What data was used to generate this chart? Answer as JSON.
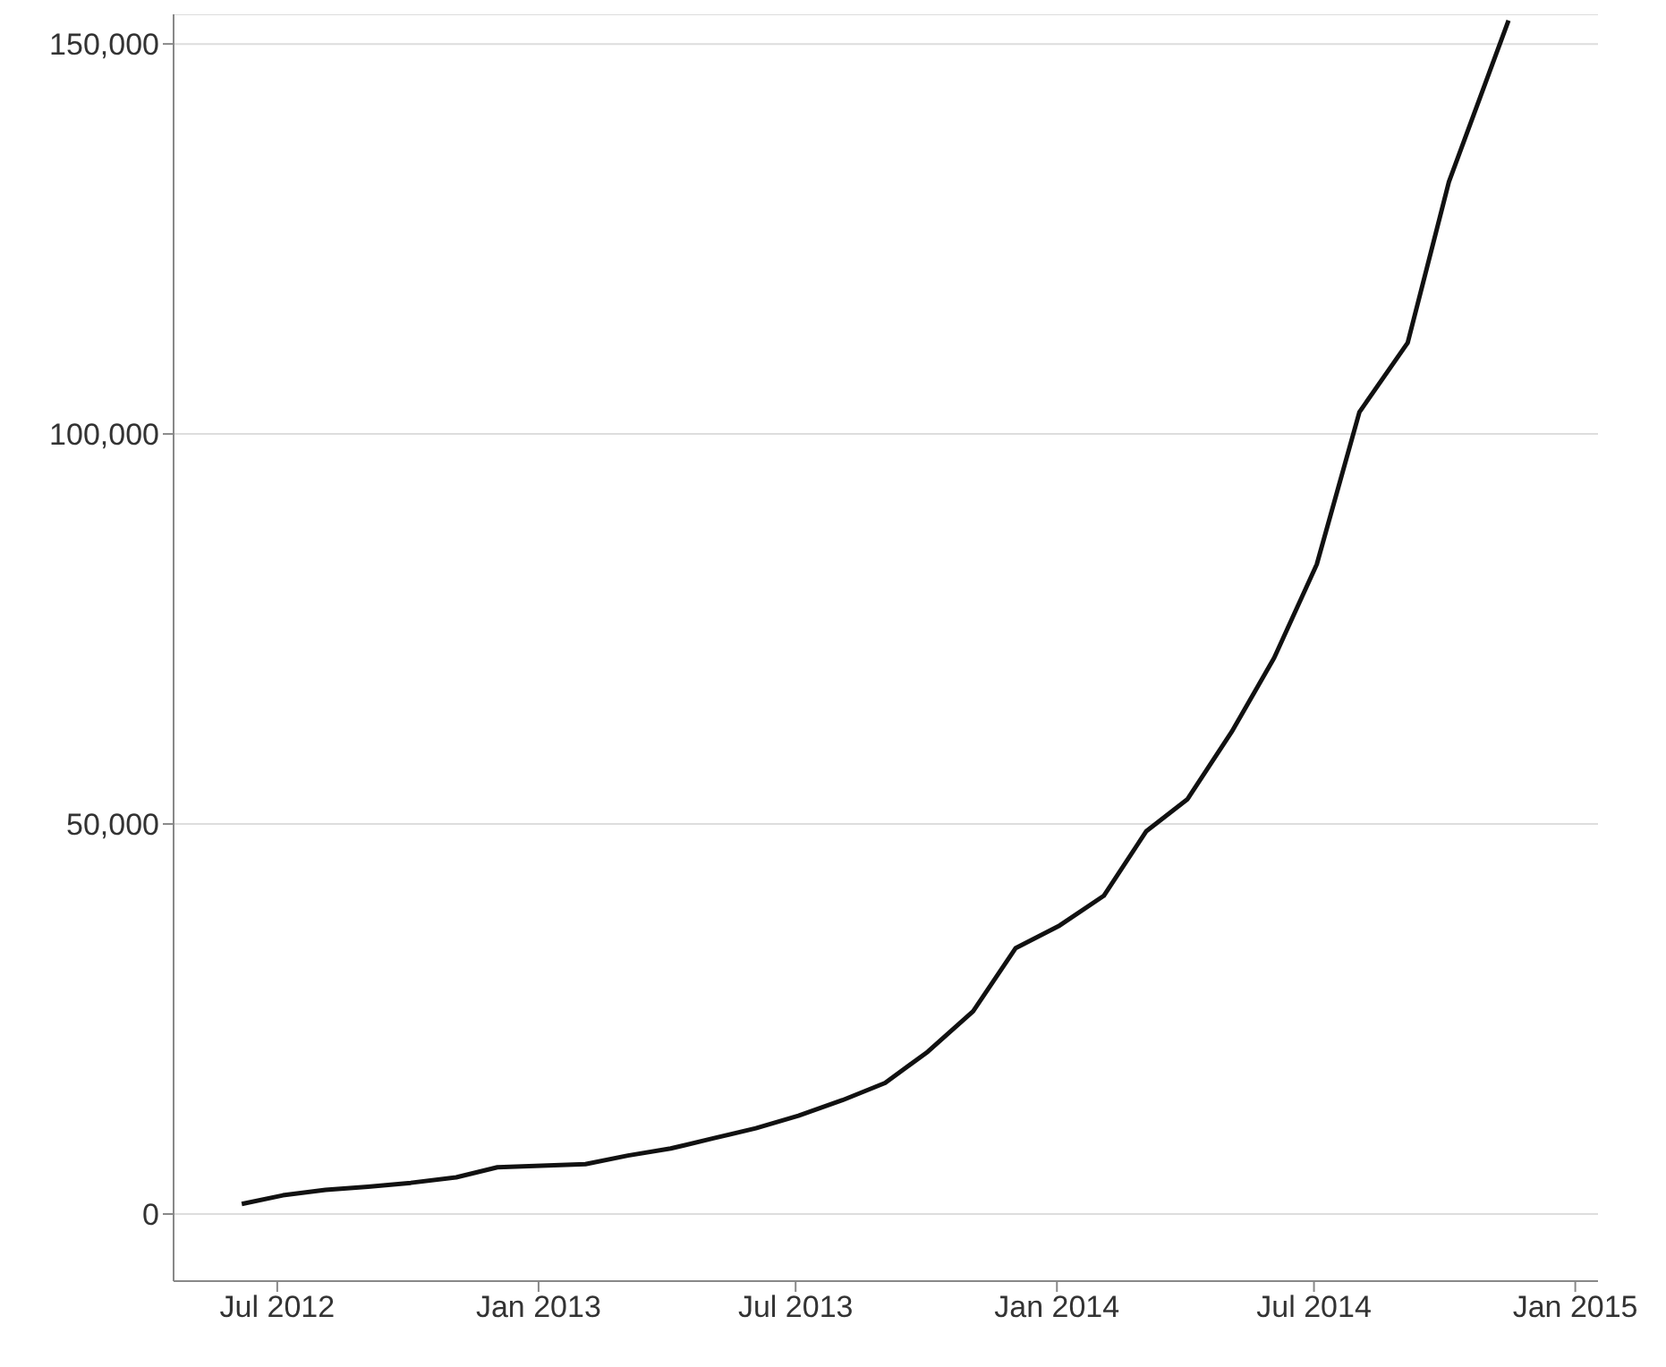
{
  "chart_data": {
    "type": "line",
    "x": [
      "2012-06-06",
      "2012-07-05",
      "2012-08-04",
      "2012-09-03",
      "2012-10-03",
      "2012-11-04",
      "2012-12-03",
      "2013-01-03",
      "2013-02-03",
      "2013-03-05",
      "2013-04-04",
      "2013-05-04",
      "2013-06-03",
      "2013-07-03",
      "2013-08-03",
      "2013-09-02",
      "2013-10-02",
      "2013-11-03",
      "2013-12-03",
      "2014-01-03",
      "2014-02-03",
      "2014-03-05",
      "2014-04-03",
      "2014-05-04",
      "2014-06-03",
      "2014-07-03",
      "2014-08-02",
      "2014-09-05",
      "2014-10-04",
      "2014-11-15"
    ],
    "series": [
      {
        "color": "#111111",
        "values": [
          1300,
          2400,
          3100,
          3500,
          4000,
          4700,
          6000,
          6200,
          6400,
          7500,
          8400,
          9700,
          11000,
          12600,
          14600,
          16800,
          20800,
          26000,
          34100,
          37000,
          40800,
          49100,
          53200,
          61800,
          71300,
          83300,
          102800,
          111700,
          132300,
          153000
        ]
      }
    ],
    "xlim": [
      "2012-04-19",
      "2015-01-17"
    ],
    "xticks": [
      {
        "value": "2012-07-01",
        "label": "Jul 2012"
      },
      {
        "value": "2013-01-01",
        "label": "Jan 2013"
      },
      {
        "value": "2013-07-01",
        "label": "Jul 2013"
      },
      {
        "value": "2014-01-01",
        "label": "Jan 2014"
      },
      {
        "value": "2014-07-01",
        "label": "Jul 2014"
      },
      {
        "value": "2015-01-01",
        "label": "Jan 2015"
      }
    ],
    "ylim": [
      -8600,
      153800
    ],
    "yticks": [
      {
        "value": 0,
        "label": "0"
      },
      {
        "value": 50000,
        "label": "50,000"
      },
      {
        "value": 100000,
        "label": "100,000"
      },
      {
        "value": 150000,
        "label": "150,000"
      }
    ],
    "grid": "y",
    "marker": "none",
    "line_style": "solid"
  }
}
